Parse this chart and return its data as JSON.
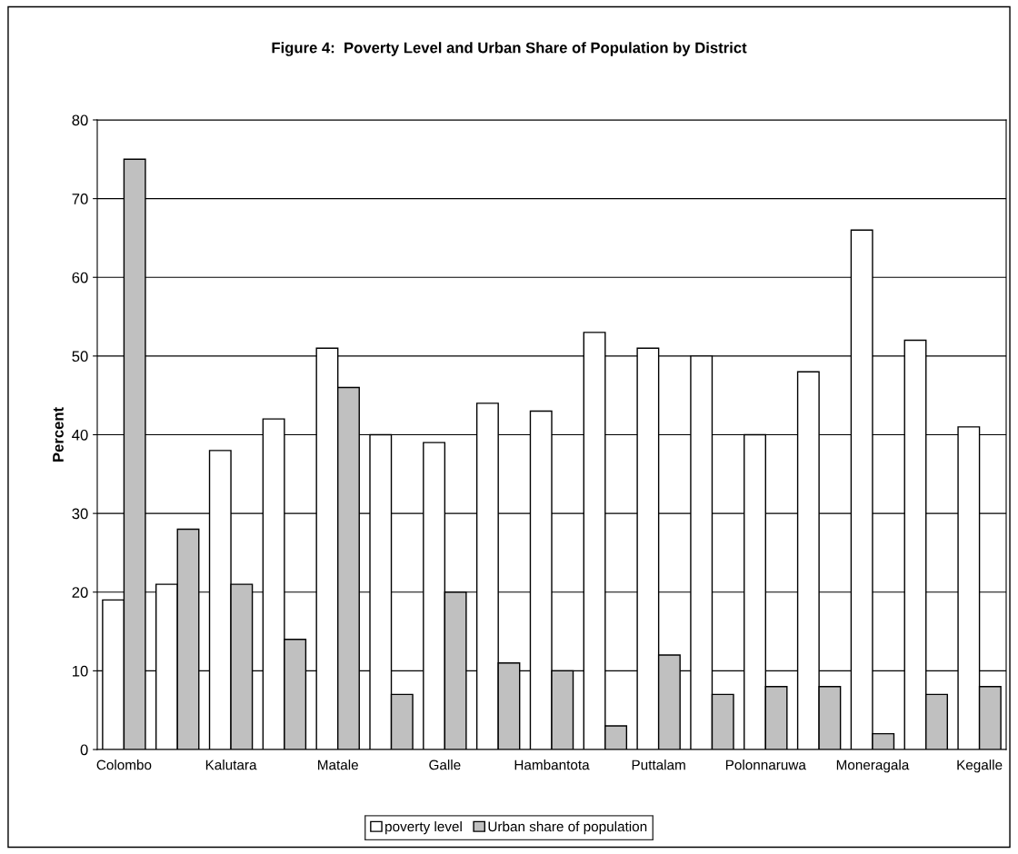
{
  "chart_data": {
    "type": "bar",
    "title": "Figure 4:  Poverty Level and Urban Share of Population by District",
    "ylabel": "Percent",
    "categories": [
      "Colombo",
      null,
      "Kalutara",
      null,
      "Matale",
      null,
      "Galle",
      null,
      "Hambantota",
      null,
      "Puttalam",
      null,
      "Polonnaruwa",
      null,
      "Moneragala",
      null,
      "Kegalle"
    ],
    "series": [
      {
        "name": "poverty level",
        "color": "#ffffff",
        "values": [
          19,
          21,
          38,
          42,
          51,
          40,
          39,
          44,
          43,
          53,
          51,
          50,
          40,
          48,
          66,
          52,
          41
        ]
      },
      {
        "name": "Urban share of population",
        "color": "#c0c0c0",
        "values": [
          75,
          28,
          21,
          14,
          46,
          7,
          20,
          11,
          10,
          3,
          12,
          7,
          8,
          8,
          2,
          7,
          8
        ]
      }
    ],
    "ylim": [
      0,
      80
    ],
    "yticks": [
      0,
      10,
      20,
      30,
      40,
      50,
      60,
      70,
      80
    ],
    "grid": "y",
    "legend": "bottom"
  }
}
